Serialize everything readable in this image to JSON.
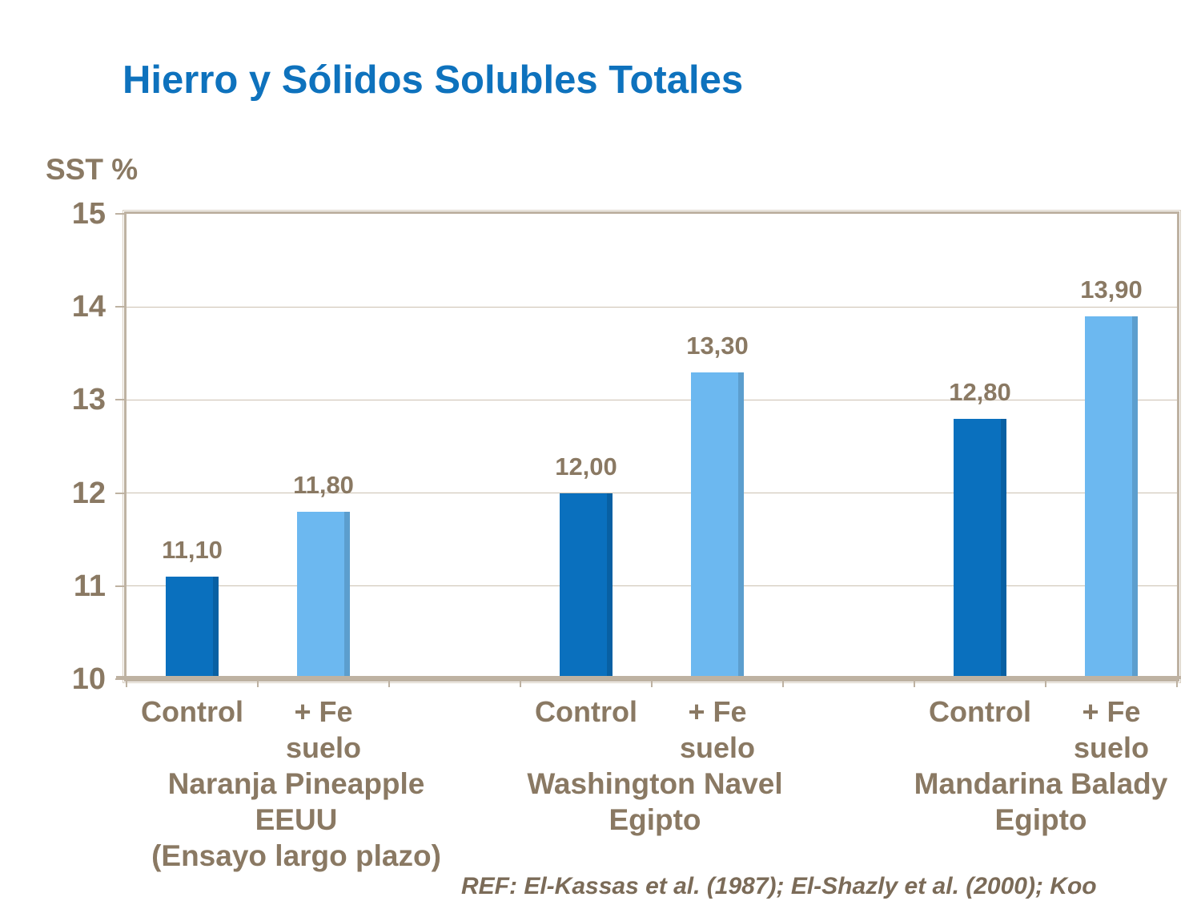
{
  "page": {
    "title": "Hierro y Sólidos Solubles Totales",
    "ref_text": "REF: El-Kassas et al. (1987); El-Shazly et al. (2000); Koo"
  },
  "colors": {
    "title_blue": "#0E72BD",
    "control_bar": "#0A70BE",
    "fe_bar": "#6CB8F0",
    "label_brown": "#8A7963",
    "ref_brown": "#7B6B58",
    "axis_tan": "#BEB2A2",
    "grid_tan": "#CCC1B1"
  },
  "chart_data": {
    "type": "bar",
    "title": "Hierro y Sólidos Solubles Totales",
    "ylabel": "SST %",
    "ylim": [
      10,
      15
    ],
    "yticks": [
      10,
      11,
      12,
      13,
      14,
      15
    ],
    "grid": true,
    "legend": "none",
    "value_label_format": "decimal-comma",
    "categories": [
      "Naranja Pineapple EEUU (Ensayo largo plazo)",
      "Washington Navel Egipto",
      "Mandarina Balady Egipto"
    ],
    "group_label_lines": [
      [
        "Naranja Pineapple",
        "EEUU",
        "(Ensayo largo plazo)"
      ],
      [
        "Washington Navel",
        "Egipto"
      ],
      [
        "Mandarina Balady",
        "Egipto"
      ]
    ],
    "x_col_labels": {
      "control": "Control",
      "fe": [
        "+ Fe",
        "suelo"
      ]
    },
    "series": [
      {
        "name": "Control",
        "color": "#0A70BE",
        "values": [
          11.1,
          12.0,
          12.8
        ]
      },
      {
        "name": "+ Fe suelo",
        "color": "#6CB8F0",
        "values": [
          11.8,
          13.3,
          13.9
        ]
      }
    ]
  }
}
